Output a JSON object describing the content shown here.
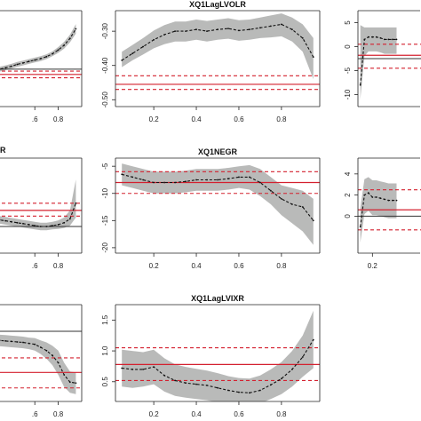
{
  "colors": {
    "band": "#b9bab9",
    "estimate": "#111111",
    "ols_line": "#d4202f",
    "zero_line": "#333333",
    "frame": "#222222"
  },
  "chart_data": [
    {
      "id": "p-r1c1",
      "type": "line",
      "title": "",
      "xlim": [
        0.0,
        1.0
      ],
      "ylim": [
        -1.0,
        1.0
      ],
      "xticks": [
        0.6,
        0.8
      ],
      "xtick_labels": [
        ".6",
        "0.8"
      ],
      "yticks": [],
      "ytick_labels": [],
      "x": [
        0.05,
        0.1,
        0.15,
        0.2,
        0.25,
        0.3,
        0.35,
        0.4,
        0.45,
        0.5,
        0.55,
        0.6,
        0.65,
        0.7,
        0.75,
        0.8,
        0.85,
        0.9,
        0.95
      ],
      "estimate": [
        -0.35,
        -0.33,
        -0.3,
        -0.28,
        -0.25,
        -0.22,
        -0.19,
        -0.16,
        -0.12,
        -0.09,
        -0.06,
        -0.03,
        0.0,
        0.04,
        0.1,
        0.18,
        0.28,
        0.42,
        0.62
      ],
      "lower": [
        -0.4,
        -0.38,
        -0.35,
        -0.33,
        -0.3,
        -0.27,
        -0.24,
        -0.21,
        -0.17,
        -0.14,
        -0.11,
        -0.08,
        -0.05,
        -0.01,
        0.05,
        0.12,
        0.21,
        0.34,
        0.52
      ],
      "upper": [
        -0.3,
        -0.28,
        -0.25,
        -0.23,
        -0.2,
        -0.17,
        -0.14,
        -0.11,
        -0.07,
        -0.04,
        -0.01,
        0.02,
        0.05,
        0.09,
        0.15,
        0.24,
        0.35,
        0.5,
        0.72
      ],
      "ols": -0.33,
      "ols_ci": [
        -0.4,
        -0.26
      ],
      "zero": -0.22
    },
    {
      "id": "p-r1c2",
      "type": "line",
      "title": "XQ1LagLVOLR",
      "xlim": [
        0.02,
        0.98
      ],
      "ylim": [
        -0.52,
        -0.24
      ],
      "xticks": [
        0.2,
        0.4,
        0.6,
        0.8
      ],
      "xtick_labels": [
        "0.2",
        "0.4",
        "0.6",
        "0.8"
      ],
      "yticks": [
        -0.5,
        -0.4,
        -0.3
      ],
      "ytick_labels": [
        "-0.50",
        "-0.40",
        "-0.30"
      ],
      "x": [
        0.05,
        0.1,
        0.15,
        0.2,
        0.25,
        0.3,
        0.35,
        0.4,
        0.45,
        0.5,
        0.55,
        0.6,
        0.65,
        0.7,
        0.75,
        0.8,
        0.85,
        0.9,
        0.95
      ],
      "estimate": [
        -0.385,
        -0.365,
        -0.345,
        -0.325,
        -0.31,
        -0.3,
        -0.3,
        -0.295,
        -0.3,
        -0.295,
        -0.292,
        -0.298,
        -0.295,
        -0.29,
        -0.285,
        -0.28,
        -0.295,
        -0.32,
        -0.375
      ],
      "lower": [
        -0.405,
        -0.385,
        -0.368,
        -0.35,
        -0.338,
        -0.33,
        -0.33,
        -0.325,
        -0.33,
        -0.325,
        -0.322,
        -0.328,
        -0.325,
        -0.32,
        -0.318,
        -0.315,
        -0.33,
        -0.36,
        -0.44
      ],
      "upper": [
        -0.36,
        -0.34,
        -0.32,
        -0.298,
        -0.282,
        -0.272,
        -0.272,
        -0.266,
        -0.27,
        -0.266,
        -0.262,
        -0.268,
        -0.266,
        -0.26,
        -0.254,
        -0.248,
        -0.26,
        -0.28,
        -0.32
      ],
      "ols": -0.455,
      "ols_ci": [
        -0.47,
        -0.43
      ],
      "zero": null
    },
    {
      "id": "p-r1c3",
      "type": "line",
      "title": "",
      "xlim": [
        0.02,
        0.98
      ],
      "ylim": [
        -12.5,
        7.5
      ],
      "xticks": [],
      "xtick_labels": [],
      "yticks": [
        -10,
        -5,
        0,
        5
      ],
      "ytick_labels": [
        "-10",
        "-5",
        "0",
        "5"
      ],
      "x": [
        0.05,
        0.1,
        0.15,
        0.2,
        0.25,
        0.3,
        0.35,
        0.4,
        0.45,
        0.5
      ],
      "estimate": [
        -8.0,
        1.5,
        2.0,
        2.0,
        2.0,
        1.8,
        1.5,
        1.5,
        1.5,
        1.5
      ],
      "lower": [
        -11.0,
        -2.0,
        -1.0,
        -1.0,
        -1.0,
        -1.2,
        -1.5,
        -1.5,
        -1.5,
        -1.5
      ],
      "upper": [
        4.5,
        4.0,
        4.0,
        4.0,
        4.0,
        4.0,
        4.0,
        4.0,
        4.0,
        4.0
      ],
      "ols": -1.8,
      "ols_ci": [
        -4.5,
        0.5
      ],
      "zero": -2.5
    },
    {
      "id": "p-r2c1",
      "type": "line",
      "title": "",
      "xlim": [
        0.0,
        1.0
      ],
      "ylim": [
        -1.0,
        1.0
      ],
      "xticks": [
        0.6,
        0.8
      ],
      "xtick_labels": [
        ".6",
        "0.8"
      ],
      "yticks": [],
      "ytick_labels": [],
      "x": [
        0.05,
        0.1,
        0.15,
        0.2,
        0.25,
        0.3,
        0.35,
        0.4,
        0.45,
        0.5,
        0.55,
        0.6,
        0.65,
        0.7,
        0.75,
        0.8,
        0.85,
        0.9,
        0.95
      ],
      "estimate": [
        -0.2,
        -0.22,
        -0.24,
        -0.26,
        -0.28,
        -0.3,
        -0.32,
        -0.34,
        -0.36,
        -0.38,
        -0.4,
        -0.42,
        -0.44,
        -0.44,
        -0.42,
        -0.4,
        -0.36,
        -0.28,
        0.05
      ],
      "lower": [
        -0.28,
        -0.3,
        -0.32,
        -0.34,
        -0.36,
        -0.38,
        -0.4,
        -0.42,
        -0.44,
        -0.46,
        -0.48,
        -0.5,
        -0.52,
        -0.52,
        -0.5,
        -0.49,
        -0.47,
        -0.42,
        -0.25
      ],
      "upper": [
        -0.12,
        -0.14,
        -0.16,
        -0.18,
        -0.2,
        -0.22,
        -0.24,
        -0.26,
        -0.28,
        -0.3,
        -0.32,
        -0.34,
        -0.36,
        -0.36,
        -0.34,
        -0.31,
        -0.25,
        -0.1,
        0.55
      ],
      "ols": -0.1,
      "ols_ci": [
        -0.22,
        0.05
      ],
      "zero": -0.44
    },
    {
      "id": "p-r2c2",
      "type": "line",
      "title": "XQ1NEGR",
      "xlim": [
        0.02,
        0.98
      ],
      "ylim": [
        -21,
        -3.5
      ],
      "xticks": [
        0.2,
        0.4,
        0.6,
        0.8
      ],
      "xtick_labels": [
        "0.2",
        "0.4",
        "0.6",
        "0.8"
      ],
      "yticks": [
        -20,
        -15,
        -10,
        -5
      ],
      "ytick_labels": [
        "-20",
        "-15",
        "-10",
        "-5"
      ],
      "x": [
        0.05,
        0.1,
        0.15,
        0.2,
        0.25,
        0.3,
        0.35,
        0.4,
        0.45,
        0.5,
        0.55,
        0.6,
        0.65,
        0.7,
        0.75,
        0.8,
        0.85,
        0.9,
        0.95
      ],
      "estimate": [
        -6.5,
        -7.0,
        -7.5,
        -8.0,
        -8.0,
        -8.0,
        -7.8,
        -7.5,
        -7.5,
        -7.5,
        -7.3,
        -7.0,
        -7.0,
        -8.0,
        -9.5,
        -11.0,
        -12.0,
        -12.5,
        -15.0
      ],
      "lower": [
        -8.5,
        -9.0,
        -9.5,
        -10.0,
        -10.0,
        -10.0,
        -9.8,
        -9.5,
        -9.5,
        -9.5,
        -9.3,
        -9.0,
        -9.3,
        -10.5,
        -12.0,
        -14.0,
        -15.5,
        -17.0,
        -19.5
      ],
      "upper": [
        -4.5,
        -5.0,
        -5.5,
        -6.0,
        -6.0,
        -6.0,
        -5.8,
        -5.5,
        -5.5,
        -5.5,
        -5.3,
        -5.0,
        -4.8,
        -5.5,
        -7.0,
        -8.5,
        -9.0,
        -9.5,
        -11.0
      ],
      "ols": -8.0,
      "ols_ci": [
        -10.0,
        -6.0
      ],
      "zero": null
    },
    {
      "id": "p-r2c3",
      "type": "line",
      "title": "",
      "xlim": [
        0.02,
        0.98
      ],
      "ylim": [
        -3.5,
        5.5
      ],
      "xticks": [
        0.2
      ],
      "xtick_labels": [
        "0.2"
      ],
      "yticks": [
        0,
        2,
        4
      ],
      "ytick_labels": [
        "0",
        "2",
        "4"
      ],
      "x": [
        0.05,
        0.1,
        0.15,
        0.2,
        0.25,
        0.3,
        0.35,
        0.4,
        0.45,
        0.5
      ],
      "estimate": [
        -1.0,
        2.0,
        2.2,
        1.8,
        1.8,
        1.7,
        1.6,
        1.5,
        1.5,
        1.5
      ],
      "lower": [
        -2.5,
        0.2,
        0.5,
        0.1,
        0.1,
        0.0,
        -0.1,
        -0.2,
        -0.2,
        -0.2
      ],
      "upper": [
        0.8,
        3.5,
        3.7,
        3.4,
        3.4,
        3.3,
        3.2,
        3.1,
        3.1,
        3.1
      ],
      "ols": 0.6,
      "ols_ci": [
        -1.3,
        2.5
      ],
      "zero": 0.0
    },
    {
      "id": "p-r3c1",
      "type": "line",
      "title": "",
      "xlim": [
        0.0,
        1.0
      ],
      "ylim": [
        -1.0,
        1.0
      ],
      "xticks": [
        0.6,
        0.8
      ],
      "xtick_labels": [
        ".6",
        "0.8"
      ],
      "yticks": [],
      "ytick_labels": [],
      "x": [
        0.05,
        0.1,
        0.15,
        0.2,
        0.25,
        0.3,
        0.35,
        0.4,
        0.45,
        0.5,
        0.55,
        0.6,
        0.65,
        0.7,
        0.75,
        0.8,
        0.85,
        0.9,
        0.95
      ],
      "estimate": [
        0.3,
        0.3,
        0.29,
        0.28,
        0.27,
        0.26,
        0.25,
        0.24,
        0.23,
        0.22,
        0.2,
        0.18,
        0.12,
        0.05,
        -0.05,
        -0.2,
        -0.45,
        -0.6,
        -0.62
      ],
      "lower": [
        0.18,
        0.18,
        0.17,
        0.16,
        0.15,
        0.14,
        0.13,
        0.12,
        0.11,
        0.1,
        0.08,
        0.05,
        -0.02,
        -0.12,
        -0.25,
        -0.45,
        -0.7,
        -0.82,
        -0.85
      ],
      "upper": [
        0.42,
        0.42,
        0.41,
        0.4,
        0.39,
        0.38,
        0.37,
        0.36,
        0.35,
        0.34,
        0.32,
        0.31,
        0.26,
        0.22,
        0.15,
        0.05,
        -0.2,
        -0.38,
        -0.4
      ],
      "ols": -0.4,
      "ols_ci": [
        -0.72,
        -0.1
      ],
      "zero": 0.45
    },
    {
      "id": "p-r3c2",
      "type": "line",
      "title": "XQ1LagLVIXR",
      "xlim": [
        0.02,
        0.98
      ],
      "ylim": [
        0.18,
        1.75
      ],
      "xticks": [
        0.2,
        0.4,
        0.6,
        0.8
      ],
      "xtick_labels": [
        "0.2",
        "0.4",
        "0.6",
        "0.8"
      ],
      "yticks": [
        0.5,
        1.0,
        1.5
      ],
      "ytick_labels": [
        "0.5",
        "1.0",
        "1.5"
      ],
      "x": [
        0.05,
        0.1,
        0.15,
        0.2,
        0.25,
        0.3,
        0.35,
        0.4,
        0.45,
        0.5,
        0.55,
        0.6,
        0.65,
        0.7,
        0.75,
        0.8,
        0.85,
        0.9,
        0.95
      ],
      "estimate": [
        0.72,
        0.7,
        0.7,
        0.74,
        0.6,
        0.52,
        0.48,
        0.46,
        0.44,
        0.4,
        0.36,
        0.33,
        0.32,
        0.36,
        0.45,
        0.55,
        0.7,
        0.9,
        1.18
      ],
      "lower": [
        0.42,
        0.4,
        0.42,
        0.46,
        0.34,
        0.27,
        0.24,
        0.22,
        0.2,
        0.17,
        0.14,
        0.12,
        0.12,
        0.15,
        0.22,
        0.3,
        0.42,
        0.58,
        0.72
      ],
      "upper": [
        1.02,
        1.0,
        0.98,
        1.02,
        0.88,
        0.78,
        0.74,
        0.71,
        0.68,
        0.64,
        0.59,
        0.56,
        0.55,
        0.6,
        0.7,
        0.82,
        1.0,
        1.25,
        1.65
      ],
      "ols": 0.78,
      "ols_ci": [
        0.52,
        1.05
      ],
      "zero": null
    }
  ]
}
